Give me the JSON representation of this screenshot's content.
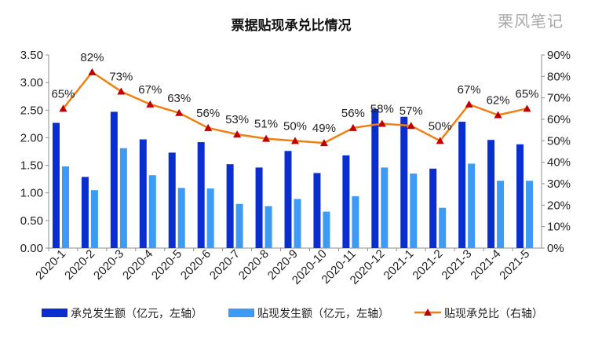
{
  "watermark": "栗风笔记",
  "chart_data": {
    "type": "bar+line",
    "title": "票据贴现承兑比情况",
    "categories": [
      "2020-1",
      "2020-2",
      "2020-3",
      "2020-4",
      "2020-5",
      "2020-6",
      "2020-7",
      "2020-8",
      "2020-9",
      "2020-10",
      "2020-11",
      "2020-12",
      "2021-1",
      "2021-2",
      "2021-3",
      "2021-4",
      "2021-5"
    ],
    "series": [
      {
        "name": "承兑发生额（亿元，左轴）",
        "type": "bar",
        "axis": "left",
        "color": "#0b2ecf",
        "values": [
          2.27,
          1.29,
          2.47,
          1.97,
          1.73,
          1.92,
          1.52,
          1.46,
          1.76,
          1.36,
          1.68,
          2.52,
          2.38,
          1.44,
          2.29,
          1.96,
          1.88
        ]
      },
      {
        "name": "贴现发生额（亿元，左轴）",
        "type": "bar",
        "axis": "left",
        "color": "#3d9bf5",
        "values": [
          1.48,
          1.05,
          1.81,
          1.32,
          1.09,
          1.08,
          0.8,
          0.76,
          0.89,
          0.66,
          0.94,
          1.46,
          1.35,
          0.73,
          1.53,
          1.22,
          1.22
        ]
      },
      {
        "name": "贴现承兑比（右轴）",
        "type": "line",
        "axis": "right",
        "color": "#f07f14",
        "marker_color": "#c00000",
        "values": [
          65,
          82,
          73,
          67,
          63,
          56,
          53,
          51,
          50,
          49,
          56,
          58,
          57,
          50,
          67,
          62,
          65
        ]
      }
    ],
    "data_labels": [
      "65%",
      "82%",
      "73%",
      "67%",
      "63%",
      "56%",
      "53%",
      "51%",
      "50%",
      "49%",
      "56%",
      "58%",
      "57%",
      "50%",
      "67%",
      "62%",
      "65%"
    ],
    "y_left": {
      "range": [
        0,
        3.5
      ],
      "ticks": [
        "0.00",
        "0.50",
        "1.00",
        "1.50",
        "2.00",
        "2.50",
        "3.00",
        "3.50"
      ]
    },
    "y_right": {
      "range": [
        0,
        90
      ],
      "unit": "%",
      "ticks": [
        "0%",
        "10%",
        "20%",
        "30%",
        "40%",
        "50%",
        "60%",
        "70%",
        "80%",
        "90%"
      ]
    },
    "grid": false,
    "legend_position": "bottom"
  }
}
